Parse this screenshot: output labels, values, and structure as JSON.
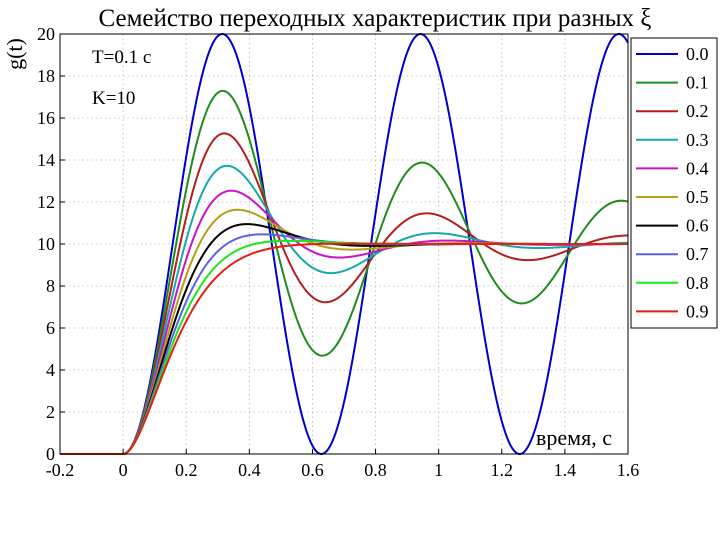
{
  "chart_data": {
    "type": "line",
    "title": "Семейство переходных характеристик при разных ξ",
    "ylabel": "g(t)",
    "xlabel": "время, с",
    "annotations": [
      "T=0.1 с",
      "K=10"
    ],
    "xlim": [
      -0.2,
      1.6
    ],
    "ylim": [
      0,
      20
    ],
    "xticks": [
      "-0.2",
      "0",
      "0.2",
      "0.4",
      "0.6",
      "0.8",
      "1",
      "1.2",
      "1.4",
      "1.6"
    ],
    "yticks": [
      "0",
      "2",
      "4",
      "6",
      "8",
      "10",
      "12",
      "14",
      "16",
      "18",
      "20"
    ],
    "grid": true,
    "legend_position": "right",
    "model": {
      "K": 10,
      "T": 0.1,
      "x_start": -0.2,
      "x_end": 1.6
    },
    "series": [
      {
        "name": "0.0",
        "zeta": 0.0,
        "color": "#0000c8"
      },
      {
        "name": "0.1",
        "zeta": 0.1,
        "color": "#1e8c1e"
      },
      {
        "name": "0.2",
        "zeta": 0.2,
        "color": "#b41e1e"
      },
      {
        "name": "0.3",
        "zeta": 0.3,
        "color": "#14aaaa"
      },
      {
        "name": "0.4",
        "zeta": 0.4,
        "color": "#c814c8"
      },
      {
        "name": "0.5",
        "zeta": 0.5,
        "color": "#b4a014"
      },
      {
        "name": "0.6",
        "zeta": 0.6,
        "color": "#000000"
      },
      {
        "name": "0.7",
        "zeta": 0.7,
        "color": "#5a64dc"
      },
      {
        "name": "0.8",
        "zeta": 0.8,
        "color": "#1ee61e"
      },
      {
        "name": "0.9",
        "zeta": 0.9,
        "color": "#e61e14"
      }
    ]
  }
}
